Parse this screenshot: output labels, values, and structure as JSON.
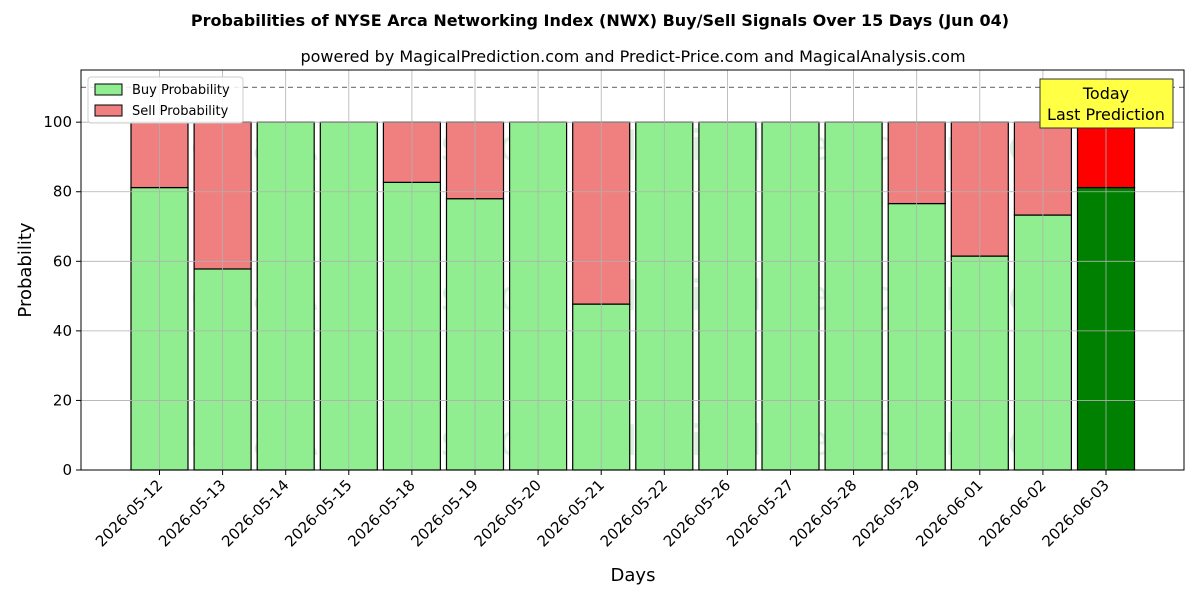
{
  "chart_data": {
    "type": "bar",
    "stacked": true,
    "title": "Probabilities of NYSE Arca Networking Index (NWX) Buy/Sell Signals Over 15 Days (Jun 04)",
    "subtitle": "powered by MagicalPrediction.com and Predict-Price.com and MagicalAnalysis.com",
    "xlabel": "Days",
    "ylabel": "Probability",
    "ylim": [
      0,
      115
    ],
    "yticks": [
      "0",
      "20",
      "40",
      "60",
      "80",
      "100"
    ],
    "grid": true,
    "legend_position": "top-left",
    "reference_line": 110,
    "categories": [
      "2026-05-12",
      "2026-05-13",
      "2026-05-14",
      "2026-05-15",
      "2026-05-18",
      "2026-05-19",
      "2026-05-20",
      "2026-05-21",
      "2026-05-22",
      "2026-05-26",
      "2026-05-27",
      "2026-05-28",
      "2026-05-29",
      "2026-06-01",
      "2026-06-02",
      "2026-06-03"
    ],
    "series": [
      {
        "name": "Buy Probability",
        "color": "#90ee90",
        "highlight_color": "#008000",
        "values": [
          81.2,
          57.8,
          100,
          100,
          82.7,
          78.0,
          100,
          47.7,
          100,
          100,
          100,
          100,
          76.6,
          61.5,
          73.3,
          81.2
        ]
      },
      {
        "name": "Sell Probability",
        "color": "#f08080",
        "highlight_color": "#ff0000",
        "values": [
          18.8,
          42.2,
          0,
          0,
          17.3,
          22.0,
          0,
          52.3,
          0,
          0,
          0,
          0,
          23.4,
          38.5,
          26.7,
          18.8
        ]
      }
    ],
    "annotation": {
      "line1": "Today",
      "line2": "Last Prediction",
      "color": "#ffff44"
    },
    "watermarks": [
      "MagicalAnalysis.com",
      "MagicalPrediction.com"
    ]
  }
}
